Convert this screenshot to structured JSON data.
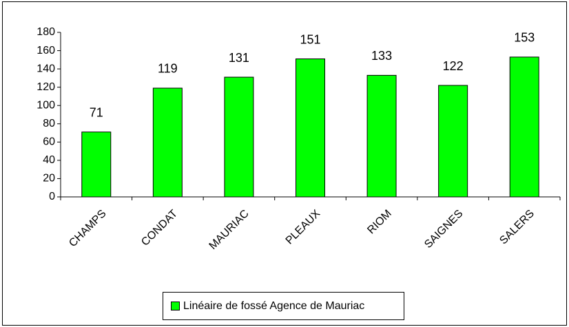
{
  "chart_data": {
    "type": "bar",
    "categories": [
      "CHAMPS",
      "CONDAT",
      "MAURIAC",
      "PLEAUX",
      "RIOM",
      "SAIGNES",
      "SALERS"
    ],
    "series": [
      {
        "name": "Linéaire de fossé Agence de Mauriac",
        "color": "#00ff00",
        "values": [
          71,
          119,
          131,
          151,
          133,
          122,
          153
        ]
      }
    ],
    "ylim": [
      0,
      180
    ],
    "yticks": [
      0,
      20,
      40,
      60,
      80,
      100,
      120,
      140,
      160,
      180
    ],
    "grid": false,
    "legend": "bottom"
  }
}
